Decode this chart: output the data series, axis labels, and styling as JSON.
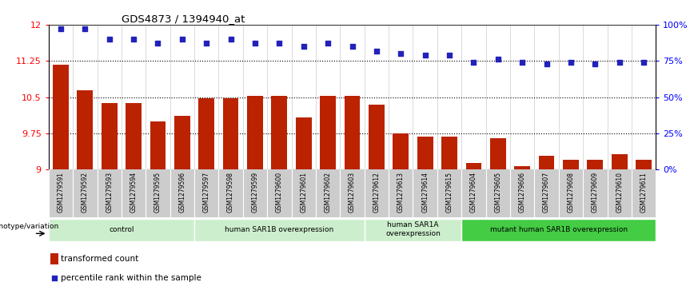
{
  "title": "GDS4873 / 1394940_at",
  "samples": [
    "GSM1279591",
    "GSM1279592",
    "GSM1279593",
    "GSM1279594",
    "GSM1279595",
    "GSM1279596",
    "GSM1279597",
    "GSM1279598",
    "GSM1279599",
    "GSM1279600",
    "GSM1279601",
    "GSM1279602",
    "GSM1279603",
    "GSM1279612",
    "GSM1279613",
    "GSM1279614",
    "GSM1279615",
    "GSM1279604",
    "GSM1279605",
    "GSM1279606",
    "GSM1279607",
    "GSM1279608",
    "GSM1279609",
    "GSM1279610",
    "GSM1279611"
  ],
  "bar_values": [
    11.17,
    10.65,
    10.38,
    10.37,
    10.0,
    10.12,
    10.47,
    10.47,
    10.52,
    10.52,
    10.08,
    10.52,
    10.52,
    10.35,
    9.75,
    9.68,
    9.68,
    9.13,
    9.65,
    9.08,
    9.28,
    9.2,
    9.2,
    9.32,
    9.2
  ],
  "dot_values": [
    97,
    97,
    90,
    90,
    87,
    90,
    87,
    90,
    87,
    87,
    85,
    87,
    85,
    82,
    80,
    79,
    79,
    74,
    76,
    74,
    73,
    74,
    73,
    74,
    74
  ],
  "ylim_left": [
    9.0,
    12.0
  ],
  "ylim_right": [
    0,
    100
  ],
  "yticks_left": [
    9.0,
    9.75,
    10.5,
    11.25,
    12.0
  ],
  "ytick_labels_left": [
    "9",
    "9.75",
    "10.5",
    "11.25",
    "12"
  ],
  "yticks_right": [
    0,
    25,
    50,
    75,
    100
  ],
  "ytick_labels_right": [
    "0%",
    "25%",
    "50%",
    "75%",
    "100%"
  ],
  "hlines": [
    9.75,
    10.5,
    11.25
  ],
  "bar_color": "#bb2200",
  "dot_color": "#2222bb",
  "groups": [
    {
      "label": "control",
      "start": 0,
      "end": 5,
      "color": "#cceecc"
    },
    {
      "label": "human SAR1B overexpression",
      "start": 6,
      "end": 12,
      "color": "#cceecc"
    },
    {
      "label": "human SAR1A\noverexpression",
      "start": 13,
      "end": 16,
      "color": "#cceecc"
    },
    {
      "label": "mutant human SAR1B overexpression",
      "start": 17,
      "end": 24,
      "color": "#44cc44"
    }
  ],
  "xlabel_genotype": "genotype/variation",
  "legend_bar_label": "transformed count",
  "legend_dot_label": "percentile rank within the sample",
  "xtick_bg": "#cccccc",
  "group_border_color": "#aaaaaa"
}
